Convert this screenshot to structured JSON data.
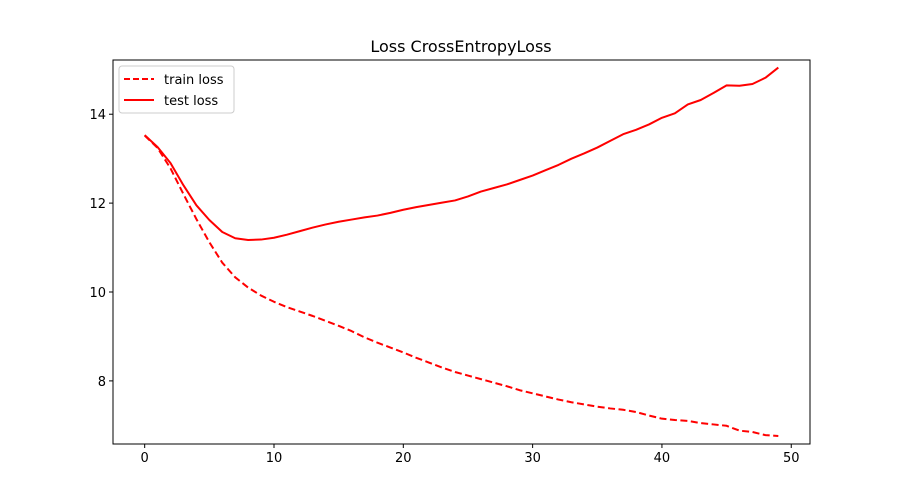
{
  "chart_data": {
    "type": "line",
    "title": "Loss CrossEntropyLoss",
    "xlabel": "",
    "ylabel": "",
    "xlim": [
      -2.45,
      51.45
    ],
    "ylim": [
      6.58,
      15.22
    ],
    "xticks": [
      0,
      10,
      20,
      30,
      40,
      50
    ],
    "yticks": [
      8,
      10,
      12,
      14
    ],
    "grid": false,
    "legend_position": "top-left",
    "x": [
      0,
      1,
      2,
      3,
      4,
      5,
      6,
      7,
      8,
      9,
      10,
      11,
      12,
      13,
      14,
      15,
      16,
      17,
      18,
      19,
      20,
      21,
      22,
      23,
      24,
      25,
      26,
      27,
      28,
      29,
      30,
      31,
      32,
      33,
      34,
      35,
      36,
      37,
      38,
      39,
      40,
      41,
      42,
      43,
      44,
      45,
      46,
      47,
      48,
      49
    ],
    "series": [
      {
        "name": "train loss",
        "color": "#ff0000",
        "linestyle": "dashed",
        "values": [
          13.52,
          13.24,
          12.78,
          12.2,
          11.64,
          11.12,
          10.66,
          10.33,
          10.1,
          9.92,
          9.78,
          9.66,
          9.56,
          9.46,
          9.35,
          9.24,
          9.12,
          8.98,
          8.86,
          8.75,
          8.64,
          8.52,
          8.41,
          8.3,
          8.2,
          8.12,
          8.04,
          7.96,
          7.88,
          7.79,
          7.72,
          7.65,
          7.58,
          7.52,
          7.47,
          7.42,
          7.38,
          7.35,
          7.3,
          7.22,
          7.15,
          7.12,
          7.1,
          7.05,
          7.02,
          6.99,
          6.88,
          6.85,
          6.78,
          6.76
        ]
      },
      {
        "name": "test loss",
        "color": "#ff0000",
        "linestyle": "solid",
        "values": [
          13.53,
          13.26,
          12.9,
          12.4,
          11.95,
          11.62,
          11.35,
          11.21,
          11.17,
          11.18,
          11.22,
          11.29,
          11.37,
          11.45,
          11.52,
          11.58,
          11.63,
          11.68,
          11.72,
          11.78,
          11.85,
          11.91,
          11.96,
          12.01,
          12.06,
          12.15,
          12.26,
          12.34,
          12.42,
          12.52,
          12.62,
          12.74,
          12.86,
          13.0,
          13.12,
          13.25,
          13.4,
          13.55,
          13.65,
          13.77,
          13.92,
          14.02,
          14.22,
          14.32,
          14.48,
          14.65,
          14.64,
          14.68,
          14.82,
          15.05
        ]
      }
    ]
  }
}
